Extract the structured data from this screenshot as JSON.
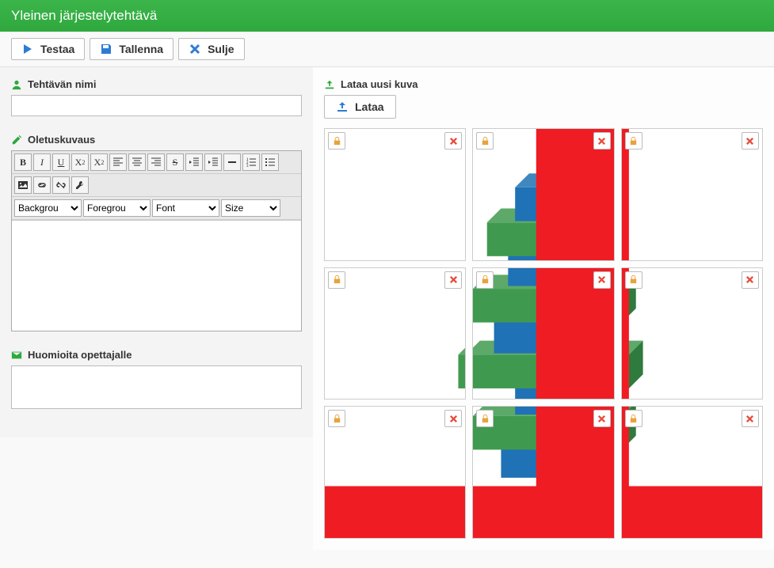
{
  "header": {
    "title": "Yleinen järjestelytehtävä"
  },
  "toolbar": {
    "test": "Testaa",
    "save": "Tallenna",
    "close": "Sulje"
  },
  "left": {
    "name_label": "Tehtävän nimi",
    "name_value": "",
    "desc_label": "Oletuskuvaus",
    "notes_label": "Huomioita opettajalle",
    "rte": {
      "bg_label": "Backgrou",
      "fg_label": "Foregrou",
      "font_label": "Font",
      "size_label": "Size"
    }
  },
  "right": {
    "upload_heading": "Lataa uusi kuva",
    "upload_button": "Lataa",
    "tiles": [
      {
        "row": 0,
        "col": 0
      },
      {
        "row": 0,
        "col": 1
      },
      {
        "row": 0,
        "col": 2
      },
      {
        "row": 1,
        "col": 0
      },
      {
        "row": 1,
        "col": 1
      },
      {
        "row": 1,
        "col": 2
      },
      {
        "row": 2,
        "col": 0
      },
      {
        "row": 2,
        "col": 1
      },
      {
        "row": 2,
        "col": 2
      }
    ]
  },
  "colors": {
    "accent_green": "#2fa83e",
    "play_blue": "#2e7bd6",
    "save_blue": "#2e7bd6",
    "close_x": "#2e7bd6",
    "lock_orange": "#e8a33d",
    "delete_red": "#e74c3c",
    "tile_red": "#ef1c24",
    "tile_blue": "#1f72b5",
    "tile_blue_dark": "#175a8f",
    "tile_green": "#3f9a4f",
    "tile_green_dark": "#2f7a3d",
    "upload_green": "#2fa83e",
    "upload_icon_blue": "#2e7bd6"
  }
}
